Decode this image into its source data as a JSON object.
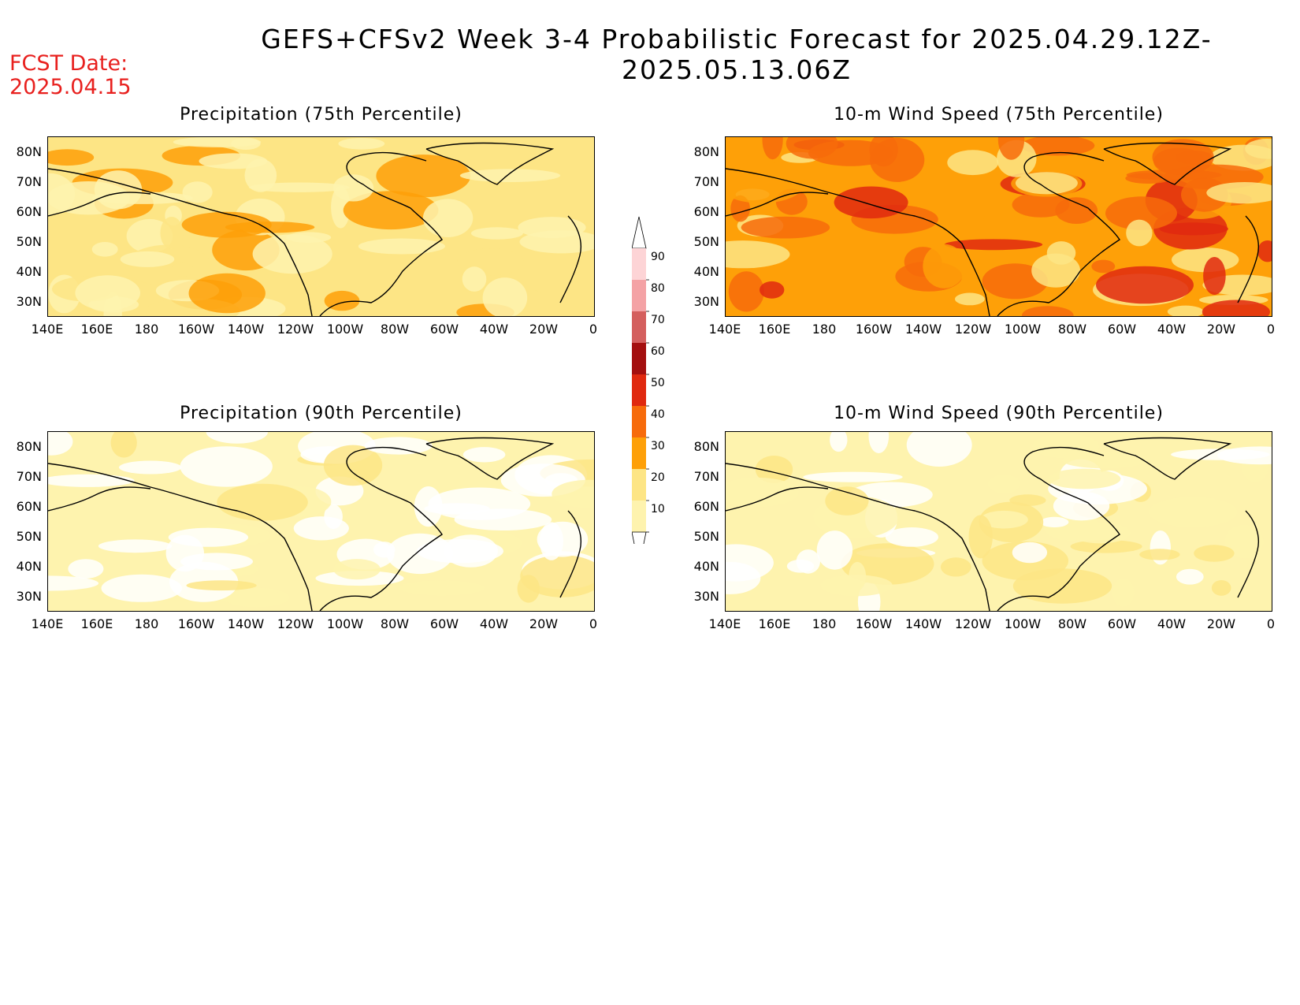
{
  "title": "GEFS+CFSv2 Week 3-4 Probabilistic Forecast for 2025.04.29.12Z-2025.05.13.06Z",
  "fcst_label": "FCST Date:",
  "fcst_date": "2025.04.15",
  "panels": [
    {
      "title": "Precipitation (75th Percentile)",
      "base": "#fde585",
      "level": 0
    },
    {
      "title": "10-m Wind Speed (75th Percentile)",
      "base": "#fea008",
      "level": 2
    },
    {
      "title": "Precipitation (90th Percentile)",
      "base": "#fef3ae",
      "level": 3
    },
    {
      "title": "10-m Wind Speed (90th Percentile)",
      "base": "#fef3ae",
      "level": 1
    }
  ],
  "lat_labels": [
    "80N",
    "70N",
    "60N",
    "50N",
    "40N",
    "30N"
  ],
  "lon_labels": [
    "140E",
    "160E",
    "180",
    "160W",
    "140W",
    "120W",
    "100W",
    "80W",
    "60W",
    "40W",
    "20W",
    "0"
  ],
  "colorbar": {
    "labels": [
      "90",
      "80",
      "70",
      "60",
      "50",
      "40",
      "30",
      "20",
      "10"
    ],
    "colors": [
      "#fdd4d6",
      "#f4a2a5",
      "#d45f5e",
      "#a40f0f",
      "#e0290f",
      "#f76b0b",
      "#fea008",
      "#fde585",
      "#fef3ae"
    ]
  },
  "chart_data": {
    "type": "map",
    "contour_levels": [
      10,
      20,
      30,
      40,
      50,
      60,
      70,
      80,
      90
    ],
    "lat_range": [
      "25N",
      "85N"
    ],
    "lon_range": [
      "140E",
      "0"
    ]
  }
}
